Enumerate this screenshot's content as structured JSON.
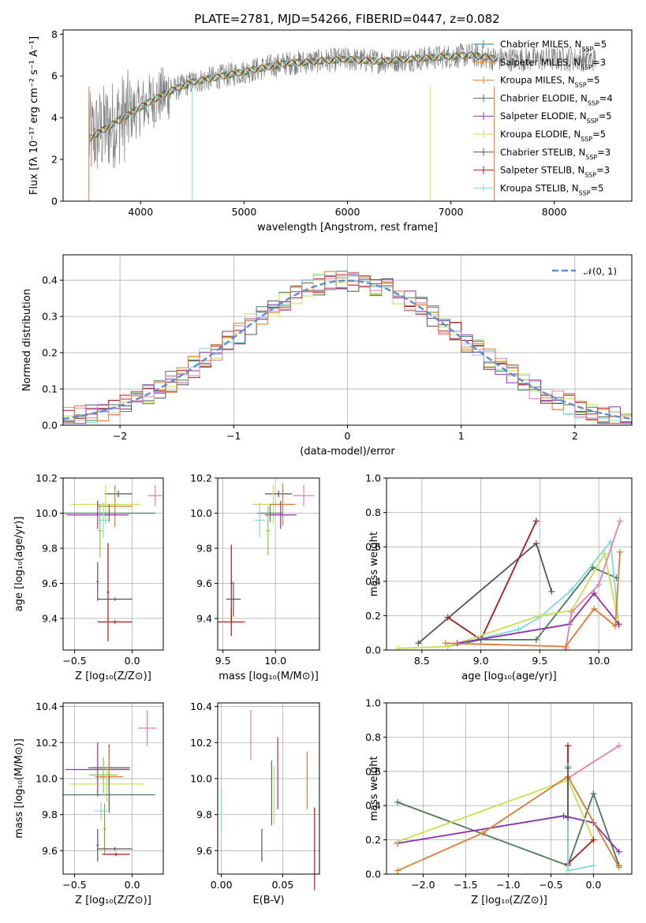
{
  "title": "PLATE=2781, MJD=54266, FIBERID=0447, z=0.082",
  "colors": {
    "Chabrier MILES": "#1f77b4",
    "Salpeter MILES": "#ff7f0e",
    "Kroupa MILES": "#e0813a",
    "Chabrier ELODIE": "#4a7a5a",
    "Salpeter ELODIE": "#8e30b0",
    "Kroupa ELODIE": "#c8e050",
    "Chabrier STELIB": "#555555",
    "Salpeter STELIB": "#b01818",
    "Kroupa STELIB": "#80d8e0",
    "extra_pink": "#e080b0",
    "extra_orange": "#e07a30",
    "extra_green": "#7fcc40",
    "extra_olive": "#9a9a30",
    "normal_curve": "#5b8fd8"
  },
  "chart_data": [
    {
      "id": "spectrum",
      "type": "line",
      "title": "PLATE=2781, MJD=54266, FIBERID=0447, z=0.082",
      "xlabel": "wavelength [Angstrom, rest frame]",
      "ylabel": "Flux [fλ 10⁻¹⁷ erg cm⁻² s⁻¹ A⁻¹]",
      "xlim": [
        3250,
        8750
      ],
      "ylim": [
        0,
        8.2
      ],
      "xticks": [
        4000,
        5000,
        6000,
        7000,
        8000
      ],
      "yticks": [
        0,
        2,
        4,
        6,
        8
      ],
      "legend_position": "right",
      "legend": [
        "Chabrier MILES, N_SSP=5",
        "Salpeter MILES, N_SSP=3",
        "Kroupa MILES, N_SSP=5",
        "Chabrier ELODIE, N_SSP=4",
        "Salpeter ELODIE, N_SSP=5",
        "Kroupa ELODIE, N_SSP=5",
        "Chabrier STELIB, N_SSP=3",
        "Salpeter STELIB, N_SSP=3",
        "Kroupa STELIB, N_SSP=5"
      ],
      "continuum": {
        "x": [
          3500,
          3700,
          3900,
          4100,
          4300,
          4500,
          4800,
          5100,
          5400,
          5700,
          6000,
          6300,
          6600,
          6900,
          7200,
          7450
        ],
        "y": [
          3.0,
          3.6,
          4.2,
          4.8,
          5.3,
          5.7,
          6.0,
          6.3,
          6.6,
          6.7,
          6.8,
          6.7,
          6.8,
          6.9,
          7.0,
          6.8
        ]
      }
    },
    {
      "id": "residuals",
      "type": "area",
      "xlabel": "(data-model)/error",
      "ylabel": "Normed distribution",
      "xlim": [
        -2.5,
        2.5
      ],
      "ylim": [
        0,
        0.47
      ],
      "xticks": [
        -2,
        -1,
        0,
        1,
        2
      ],
      "yticks": [
        0.0,
        0.1,
        0.2,
        0.3,
        0.4
      ],
      "legend": [
        "𝒩(0, 1)"
      ],
      "legend_position": "top-right",
      "bin_width": 0.1
    },
    {
      "id": "age_vs_Z",
      "type": "scatter",
      "xlabel": "Z [log₁₀(Z/Z⊙)]",
      "ylabel": "age  [log₁₀(age/yr)]",
      "xlim": [
        -0.6,
        0.27
      ],
      "ylim": [
        9.22,
        10.2
      ],
      "xticks": [
        -0.5,
        0.0
      ],
      "yticks": [
        9.4,
        9.6,
        9.8,
        10.0,
        10.2
      ],
      "points": [
        {
          "x": -0.12,
          "y": 10.11,
          "xerr": 0.12,
          "yerr": 0.02,
          "color": "#555555"
        },
        {
          "x": 0.2,
          "y": 10.1,
          "xerr": 0.06,
          "yerr": 0.06,
          "color": "#e080b0"
        },
        {
          "x": -0.23,
          "y": 10.05,
          "xerr": 0.3,
          "yerr": 0.11,
          "color": "#c8e050"
        },
        {
          "x": -0.15,
          "y": 10.04,
          "xerr": 0.15,
          "yerr": 0.12,
          "color": "#e07a30"
        },
        {
          "x": -0.2,
          "y": 10.0,
          "xerr": 0.4,
          "yerr": 0.05,
          "color": "#4a7a5a"
        },
        {
          "x": -0.3,
          "y": 9.99,
          "xerr": 0.27,
          "yerr": 0.08,
          "color": "#8e30b0"
        },
        {
          "x": -0.25,
          "y": 9.96,
          "xerr": 0.05,
          "yerr": 0.1,
          "color": "#80d8e0"
        },
        {
          "x": -0.28,
          "y": 9.9,
          "xerr": 0.02,
          "yerr": 0.15,
          "color": "#7fcc40"
        },
        {
          "x": -0.21,
          "y": 9.55,
          "xerr": 0.01,
          "yerr": 0.28,
          "color": "#b01818"
        },
        {
          "x": -0.3,
          "y": 9.61,
          "xerr": 0.01,
          "yerr": 0.11,
          "color": "#555555"
        },
        {
          "x": -0.15,
          "y": 9.51,
          "xerr": 0.15,
          "yerr": 0.01,
          "color": "#555555"
        },
        {
          "x": -0.15,
          "y": 9.38,
          "xerr": 0.15,
          "yerr": 0.01,
          "color": "#b01818"
        }
      ]
    },
    {
      "id": "age_vs_mass",
      "type": "scatter",
      "xlabel": "mass [log₁₀(M/M⊙)]",
      "ylabel": "",
      "xlim": [
        9.45,
        10.42
      ],
      "ylim": [
        9.22,
        10.2
      ],
      "xticks": [
        9.5,
        10.0
      ],
      "yticks": [
        9.4,
        9.6,
        9.8,
        10.0,
        10.2
      ],
      "points": [
        {
          "x": 10.03,
          "y": 10.11,
          "xerr": 0.13,
          "yerr": 0.02,
          "color": "#555555"
        },
        {
          "x": 10.27,
          "y": 10.1,
          "xerr": 0.1,
          "yerr": 0.06,
          "color": "#e080b0"
        },
        {
          "x": 9.98,
          "y": 10.05,
          "xerr": 0.2,
          "yerr": 0.11,
          "color": "#c8e050"
        },
        {
          "x": 10.07,
          "y": 10.05,
          "xerr": 0.12,
          "yerr": 0.12,
          "color": "#e07a30"
        },
        {
          "x": 9.95,
          "y": 10.0,
          "xerr": 0.12,
          "yerr": 0.05,
          "color": "#4a7a5a"
        },
        {
          "x": 10.05,
          "y": 9.99,
          "xerr": 0.15,
          "yerr": 0.08,
          "color": "#8e30b0"
        },
        {
          "x": 9.85,
          "y": 9.96,
          "xerr": 0.05,
          "yerr": 0.1,
          "color": "#80d8e0"
        },
        {
          "x": 9.93,
          "y": 9.9,
          "xerr": 0.02,
          "yerr": 0.14,
          "color": "#7fcc40"
        },
        {
          "x": 9.58,
          "y": 9.6,
          "xerr": 0.01,
          "yerr": 0.22,
          "color": "#b01818"
        },
        {
          "x": 9.6,
          "y": 9.51,
          "xerr": 0.07,
          "yerr": 0.1,
          "color": "#555555"
        },
        {
          "x": 9.58,
          "y": 9.38,
          "xerr": 0.13,
          "yerr": 0.08,
          "color": "#b01818"
        }
      ]
    },
    {
      "id": "weight_vs_age",
      "type": "line",
      "xlabel": "age  [log₁₀(age/yr)]",
      "ylabel": "mass weight",
      "xlim": [
        8.2,
        10.28
      ],
      "ylim": [
        0,
        1.0
      ],
      "xticks": [
        8.5,
        9.0,
        9.5,
        10.0
      ],
      "yticks": [
        0.0,
        0.2,
        0.4,
        0.6,
        0.8,
        1.0
      ],
      "series": [
        {
          "color": "#555555",
          "x": [
            8.47,
            9.47,
            9.6
          ],
          "y": [
            0.04,
            0.62,
            0.34
          ]
        },
        {
          "color": "#b01818",
          "x": [
            8.72,
            9.0,
            9.47
          ],
          "y": [
            0.19,
            0.06,
            0.75
          ]
        },
        {
          "color": "#4a7a5a",
          "x": [
            8.72,
            9.0,
            9.47,
            9.95,
            10.15
          ],
          "y": [
            0.02,
            0.06,
            0.06,
            0.48,
            0.42
          ]
        },
        {
          "color": "#80d8e0",
          "x": [
            8.72,
            9.02,
            9.32,
            9.5,
            9.77,
            10.1,
            10.17
          ],
          "y": [
            0.02,
            0.07,
            0.12,
            0.19,
            0.35,
            0.63,
            0.14
          ]
        },
        {
          "color": "#c8e050",
          "x": [
            8.3,
            8.72,
            9.5,
            9.77,
            10.05,
            10.17
          ],
          "y": [
            0.01,
            0.02,
            0.2,
            0.23,
            0.56,
            0.15
          ]
        },
        {
          "color": "#8e30b0",
          "x": [
            8.8,
            9.75,
            9.96,
            10.17
          ],
          "y": [
            0.04,
            0.15,
            0.33,
            0.15
          ]
        },
        {
          "color": "#e080b0",
          "x": [
            9.72,
            9.77,
            10.0,
            10.18
          ],
          "y": [
            0.01,
            0.22,
            0.38,
            0.75
          ]
        },
        {
          "color": "#e07a30",
          "x": [
            8.7,
            9.72,
            9.96,
            10.14,
            10.18
          ],
          "y": [
            0.04,
            0.02,
            0.24,
            0.14,
            0.57
          ]
        }
      ]
    },
    {
      "id": "mass_vs_Z",
      "type": "scatter",
      "xlabel": "Z [log₁₀(Z/Z⊙)]",
      "ylabel": "mass [log₁₀(M/M⊙)]",
      "xlim": [
        -0.6,
        0.27
      ],
      "ylim": [
        9.47,
        10.42
      ],
      "xticks": [
        -0.5,
        0.0
      ],
      "yticks": [
        9.6,
        9.8,
        10.0,
        10.2,
        10.4
      ],
      "points": [
        {
          "x": 0.13,
          "y": 10.28,
          "xerr": 0.08,
          "yerr": 0.1,
          "color": "#e080b0"
        },
        {
          "x": -0.3,
          "y": 10.05,
          "xerr": 0.28,
          "yerr": 0.15,
          "color": "#8e30b0"
        },
        {
          "x": -0.2,
          "y": 10.06,
          "xerr": 0.18,
          "yerr": 0.13,
          "color": "#555555"
        },
        {
          "x": -0.25,
          "y": 10.02,
          "xerr": 0.12,
          "yerr": 0.1,
          "color": "#7fcc40"
        },
        {
          "x": -0.2,
          "y": 10.01,
          "xerr": 0.12,
          "yerr": 0.16,
          "color": "#e07a30"
        },
        {
          "x": -0.22,
          "y": 9.97,
          "xerr": 0.32,
          "yerr": 0.1,
          "color": "#c8e050"
        },
        {
          "x": -0.2,
          "y": 9.91,
          "xerr": 0.4,
          "yerr": 0.1,
          "color": "#4a7a5a"
        },
        {
          "x": -0.27,
          "y": 9.82,
          "xerr": 0.06,
          "yerr": 0.05,
          "color": "#80d8e0"
        },
        {
          "x": -0.24,
          "y": 9.72,
          "xerr": 0.01,
          "yerr": 0.14,
          "color": "#9a9a30"
        },
        {
          "x": -0.15,
          "y": 9.61,
          "xerr": 0.15,
          "yerr": 0.01,
          "color": "#555555"
        },
        {
          "x": -0.14,
          "y": 9.58,
          "xerr": 0.12,
          "yerr": 0.01,
          "color": "#b01818"
        },
        {
          "x": -0.3,
          "y": 9.63,
          "xerr": 0.01,
          "yerr": 0.09,
          "color": "#555555"
        }
      ]
    },
    {
      "id": "mass_vs_ebv",
      "type": "scatter",
      "xlabel": "E(B-V)",
      "ylabel": "",
      "xlim": [
        -0.003,
        0.08
      ],
      "ylim": [
        9.47,
        10.42
      ],
      "xticks": [
        0.0,
        0.05
      ],
      "xticklabels": [
        "0.00",
        "0.05"
      ],
      "yticks": [
        9.6,
        9.8,
        10.0,
        10.2,
        10.4
      ],
      "points": [
        {
          "x": 0.024,
          "y": 10.24,
          "xerr": 0,
          "yerr": 0.14,
          "color": "#e080b0"
        },
        {
          "x": 0.0,
          "y": 9.83,
          "xerr": 0,
          "yerr": 0.12,
          "color": "#80d8e0"
        },
        {
          "x": 0.033,
          "y": 9.63,
          "xerr": 0,
          "yerr": 0.09,
          "color": "#555555"
        },
        {
          "x": 0.041,
          "y": 9.92,
          "xerr": 0,
          "yerr": 0.18,
          "color": "#4a7a5a"
        },
        {
          "x": 0.043,
          "y": 9.91,
          "xerr": 0,
          "yerr": 0.16,
          "color": "#c8e050"
        },
        {
          "x": 0.046,
          "y": 10.03,
          "xerr": 0,
          "yerr": 0.2,
          "color": "#8e30b0"
        },
        {
          "x": 0.07,
          "y": 9.99,
          "xerr": 0,
          "yerr": 0.16,
          "color": "#e07a30"
        },
        {
          "x": 0.076,
          "y": 9.61,
          "xerr": 0,
          "yerr": 0.23,
          "color": "#b01818"
        }
      ]
    },
    {
      "id": "weight_vs_Z",
      "type": "line",
      "xlabel": "Z [log₁₀(Z/Z⊙)]",
      "ylabel": "mass weight",
      "xlim": [
        -2.43,
        0.45
      ],
      "ylim": [
        0,
        1.0
      ],
      "xticks": [
        -2.0,
        -1.5,
        -1.0,
        -0.5,
        0.0
      ],
      "yticks": [
        0.0,
        0.2,
        0.4,
        0.6,
        0.8,
        1.0
      ],
      "series": [
        {
          "color": "#4a7a5a",
          "x": [
            -2.3,
            -0.3,
            0.0,
            0.3
          ],
          "y": [
            0.42,
            0.05,
            0.47,
            0.05
          ]
        },
        {
          "color": "#8e30b0",
          "x": [
            -2.3,
            -0.35,
            0.0,
            0.3
          ],
          "y": [
            0.18,
            0.34,
            0.3,
            0.13
          ]
        },
        {
          "color": "#c8e050",
          "x": [
            -2.3,
            -0.3,
            0.0
          ],
          "y": [
            0.19,
            0.55,
            0.2
          ]
        },
        {
          "color": "#e080b0",
          "x": [
            -0.3,
            0.3
          ],
          "y": [
            0.56,
            0.75
          ]
        },
        {
          "color": "#e07a30",
          "x": [
            -2.3,
            -1.3,
            -0.3,
            0.3
          ],
          "y": [
            0.02,
            0.24,
            0.57,
            0.04
          ]
        },
        {
          "color": "#b01818",
          "x": [
            -0.3,
            -0.3,
            0.0
          ],
          "y": [
            0.75,
            0.06,
            0.2
          ]
        },
        {
          "color": "#80d8e0",
          "x": [
            -0.3,
            -0.3,
            0.0
          ],
          "y": [
            0.63,
            0.02,
            0.05
          ]
        },
        {
          "color": "#555555",
          "x": [
            -0.3,
            -0.3
          ],
          "y": [
            0.33,
            0.62
          ]
        }
      ]
    }
  ]
}
